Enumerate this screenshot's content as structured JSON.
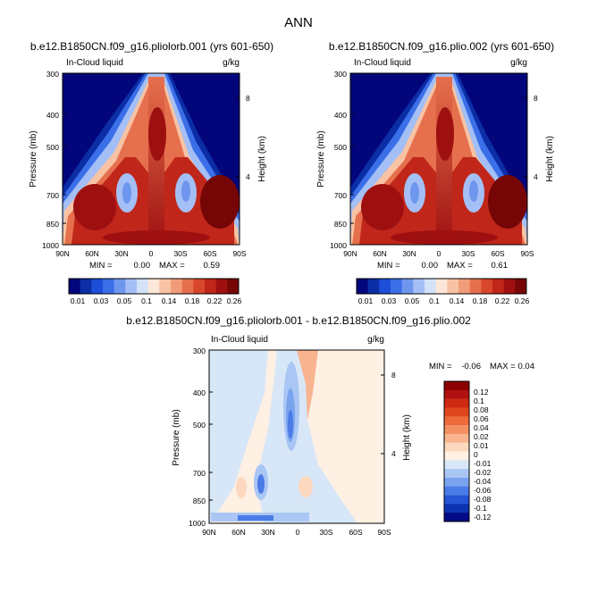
{
  "page": {
    "title": "ANN",
    "colors": {
      "axis": "#000000",
      "background": "#ffffff"
    }
  },
  "chart_data": [
    {
      "type": "contour",
      "title": "b.e12.B1850CN.f09_g16.pliolorb.001 (yrs 601-650)",
      "variable_label": "In-Cloud liquid",
      "units": "g/kg",
      "ylabel": "Pressure (mb)",
      "ylabel_right": "Height (km)",
      "x_ticks": [
        "90N",
        "60N",
        "30N",
        "0",
        "30S",
        "60S",
        "90S"
      ],
      "y_ticks": [
        "300",
        "400",
        "500",
        "700",
        "850",
        "1000"
      ],
      "y_ticks_right": [
        "8",
        "4"
      ],
      "xlim": [
        90,
        -90
      ],
      "ylim": [
        1000,
        300
      ],
      "min_label": "MIN =",
      "min_value": "0.00",
      "max_label": "MAX =",
      "max_value": "0.59",
      "colorbar_levels": [
        "0.01",
        "0.03",
        "0.05",
        "0.1",
        "0.14",
        "0.18",
        "0.22",
        "0.26"
      ],
      "colorbar_colors": [
        "#03057a",
        "#0b2ea6",
        "#1d4ed8",
        "#3b6fe8",
        "#6f96ee",
        "#a4bff5",
        "#d3e2f7",
        "#fde7d8",
        "#f7c3a4",
        "#f19c78",
        "#e6704d",
        "#d8472c",
        "#c0261a",
        "#9e1010",
        "#760606"
      ]
    },
    {
      "type": "contour",
      "title": "b.e12.B1850CN.f09_g16.plio.002 (yrs 601-650)",
      "variable_label": "In-Cloud liquid",
      "units": "g/kg",
      "ylabel": "Pressure (mb)",
      "ylabel_right": "Height (km)",
      "x_ticks": [
        "90N",
        "60N",
        "30N",
        "0",
        "30S",
        "60S",
        "90S"
      ],
      "y_ticks": [
        "300",
        "400",
        "500",
        "700",
        "850",
        "1000"
      ],
      "y_ticks_right": [
        "8",
        "4"
      ],
      "xlim": [
        90,
        -90
      ],
      "ylim": [
        1000,
        300
      ],
      "min_label": "MIN =",
      "min_value": "0.00",
      "max_label": "MAX =",
      "max_value": "0.61",
      "colorbar_levels": [
        "0.01",
        "0.03",
        "0.05",
        "0.1",
        "0.14",
        "0.18",
        "0.22",
        "0.26"
      ],
      "colorbar_colors": [
        "#03057a",
        "#0b2ea6",
        "#1d4ed8",
        "#3b6fe8",
        "#6f96ee",
        "#a4bff5",
        "#d3e2f7",
        "#fde7d8",
        "#f7c3a4",
        "#f19c78",
        "#e6704d",
        "#d8472c",
        "#c0261a",
        "#9e1010",
        "#760606"
      ]
    },
    {
      "type": "contour",
      "title": "b.e12.B1850CN.f09_g16.pliolorb.001 - b.e12.B1850CN.f09_g16.plio.002",
      "variable_label": "In-Cloud liquid",
      "units": "g/kg",
      "ylabel": "Pressure (mb)",
      "ylabel_right": "Height (km)",
      "x_ticks": [
        "90N",
        "60N",
        "30N",
        "0",
        "30S",
        "60S",
        "90S"
      ],
      "y_ticks": [
        "300",
        "400",
        "500",
        "700",
        "850",
        "1000"
      ],
      "y_ticks_right": [
        "8",
        "4"
      ],
      "xlim": [
        90,
        -90
      ],
      "ylim": [
        1000,
        300
      ],
      "min_label": "MIN =",
      "min_value": "-0.06",
      "max_label": "MAX =",
      "max_value": "0.04",
      "colorbar_levels": [
        "0.12",
        "0.1",
        "0.08",
        "0.06",
        "0.04",
        "0.02",
        "0.01",
        "0",
        "-0.01",
        "-0.02",
        "-0.04",
        "-0.06",
        "-0.08",
        "-0.1",
        "-0.12"
      ],
      "colorbar_colors": [
        "#8b0000",
        "#b01212",
        "#cc2a12",
        "#e0461e",
        "#ee6a3a",
        "#f48f62",
        "#f8b48f",
        "#fcd8bf",
        "#fff0e4",
        "#d8e7f8",
        "#a9c6f4",
        "#7aa3ee",
        "#4a7be6",
        "#2555d6",
        "#0d33b0",
        "#030a85"
      ]
    }
  ]
}
